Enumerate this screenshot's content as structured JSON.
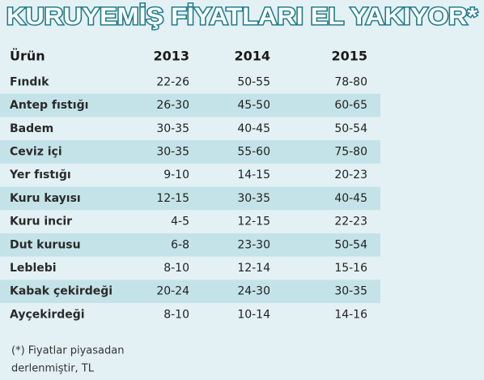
{
  "title": "KURUYEMİŞ FİYATLARI EL YAKIYOR*",
  "table": {
    "header": [
      "Ürün",
      "2013",
      "2014",
      "2015"
    ],
    "rows": [
      [
        "Fındık",
        "22-26",
        "50-55",
        "78-80"
      ],
      [
        "Antep fıstığı",
        "26-30",
        "45-50",
        "60-65"
      ],
      [
        "Badem",
        "30-35",
        "40-45",
        "50-54"
      ],
      [
        "Ceviz içi",
        "30-35",
        "55-60",
        "75-80"
      ],
      [
        "Yer fıstığı",
        "9-10",
        "14-15",
        "20-23"
      ],
      [
        "Kuru kayısı",
        "12-15",
        "30-35",
        "40-45"
      ],
      [
        "Kuru incir",
        "4-5",
        "12-15",
        "22-23"
      ],
      [
        "Dut kurusu",
        "6-8",
        "23-30",
        "50-54"
      ],
      [
        "Leblebi",
        "8-10",
        "12-14",
        "15-16"
      ],
      [
        "Kabak çekirdeği",
        "20-24",
        "24-30",
        "30-35"
      ],
      [
        "Ayçekirdeği",
        "8-10",
        "10-14",
        "14-16"
      ]
    ]
  },
  "footnote": [
    "(*) Fiyatlar piyasadan",
    "derlenmiştir, TL"
  ]
}
